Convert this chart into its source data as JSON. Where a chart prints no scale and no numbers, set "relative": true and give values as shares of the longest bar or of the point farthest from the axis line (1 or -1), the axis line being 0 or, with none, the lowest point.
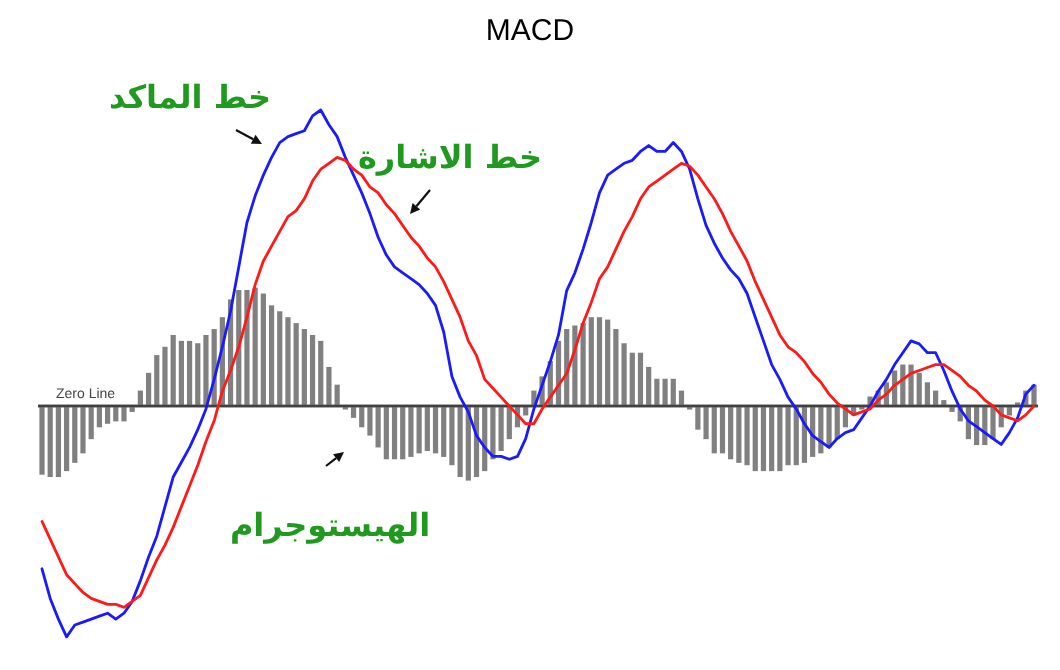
{
  "chart_data": [
    {
      "type": "line",
      "title": "MACD",
      "relative": true,
      "categories": [
        null,
        null,
        null,
        null,
        null,
        null,
        null,
        null,
        null,
        null,
        null,
        null,
        null,
        null,
        null,
        null,
        null,
        null,
        null,
        null,
        null,
        null,
        null,
        null,
        null,
        null,
        null,
        null,
        null,
        null,
        null,
        null,
        null,
        null,
        null,
        null,
        null,
        null,
        null,
        null,
        null,
        null,
        null,
        null,
        null,
        null,
        null,
        null,
        null,
        null,
        null,
        null,
        null,
        null,
        null,
        null,
        null,
        null,
        null,
        null,
        null,
        null,
        null,
        null,
        null,
        null,
        null,
        null,
        null,
        null,
        null,
        null,
        null,
        null,
        null,
        null,
        null,
        null,
        null,
        null,
        null,
        null,
        null,
        null,
        null,
        null,
        null,
        null,
        null,
        null,
        null,
        null,
        null,
        null,
        null,
        null,
        null,
        null,
        null,
        null,
        null,
        null,
        null,
        null,
        null,
        null,
        null,
        null,
        null,
        null,
        null,
        null,
        null,
        null,
        null,
        null,
        null,
        null,
        null,
        null,
        null,
        null
      ],
      "series": [
        {
          "name": "خط الماكد",
          "color": "#1a1aff",
          "values": [
            -0.55,
            -0.65,
            -0.72,
            -0.78,
            -0.74,
            -0.73,
            -0.72,
            -0.71,
            -0.7,
            -0.72,
            -0.7,
            -0.66,
            -0.59,
            -0.51,
            -0.44,
            -0.34,
            -0.24,
            -0.19,
            -0.14,
            -0.08,
            -0.01,
            0.09,
            0.2,
            0.32,
            0.47,
            0.62,
            0.71,
            0.78,
            0.84,
            0.89,
            0.91,
            0.92,
            0.93,
            0.98,
            1,
            0.95,
            0.91,
            0.84,
            0.78,
            0.72,
            0.65,
            0.57,
            0.51,
            0.47,
            0.45,
            0.43,
            0.41,
            0.38,
            0.34,
            0.25,
            0.1,
            0.03,
            -0.02,
            -0.1,
            -0.14,
            -0.17,
            -0.17,
            -0.18,
            -0.17,
            -0.11,
            -0.01,
            0.07,
            0.15,
            0.24,
            0.39,
            0.45,
            0.53,
            0.62,
            0.72,
            0.78,
            0.8,
            0.82,
            0.83,
            0.86,
            0.88,
            0.86,
            0.86,
            0.89,
            0.86,
            0.8,
            0.7,
            0.61,
            0.55,
            0.5,
            0.46,
            0.43,
            0.38,
            0.3,
            0.22,
            0.14,
            0.09,
            0.03,
            -0.01,
            -0.06,
            -0.1,
            -0.12,
            -0.14,
            -0.11,
            -0.09,
            -0.08,
            -0.04,
            0,
            0.05,
            0.09,
            0.14,
            0.18,
            0.22,
            0.21,
            0.18,
            0.18,
            0.12,
            0.05,
            -0.01,
            -0.05,
            -0.07,
            -0.09,
            -0.11,
            -0.13,
            -0.09,
            -0.04,
            0.04,
            0.07
          ]
        },
        {
          "name": "خط الاشارة",
          "color": "#ff1a1a",
          "values": [
            -0.39,
            -0.45,
            -0.51,
            -0.57,
            -0.6,
            -0.63,
            -0.65,
            -0.66,
            -0.67,
            -0.67,
            -0.68,
            -0.66,
            -0.64,
            -0.58,
            -0.52,
            -0.47,
            -0.41,
            -0.34,
            -0.27,
            -0.2,
            -0.12,
            -0.05,
            0.05,
            0.12,
            0.2,
            0.3,
            0.41,
            0.49,
            0.54,
            0.59,
            0.64,
            0.66,
            0.7,
            0.76,
            0.8,
            0.82,
            0.84,
            0.83,
            0.8,
            0.78,
            0.74,
            0.72,
            0.68,
            0.65,
            0.61,
            0.57,
            0.54,
            0.5,
            0.47,
            0.42,
            0.36,
            0.3,
            0.22,
            0.17,
            0.09,
            0.06,
            0.03,
            0,
            -0.03,
            -0.06,
            -0.06,
            -0.01,
            0.03,
            0.07,
            0.11,
            0.19,
            0.28,
            0.35,
            0.43,
            0.47,
            0.53,
            0.59,
            0.64,
            0.7,
            0.74,
            0.76,
            0.78,
            0.8,
            0.82,
            0.81,
            0.78,
            0.74,
            0.7,
            0.65,
            0.59,
            0.54,
            0.49,
            0.42,
            0.36,
            0.3,
            0.24,
            0.2,
            0.18,
            0.15,
            0.11,
            0.08,
            0.04,
            0.01,
            -0.01,
            -0.03,
            -0.02,
            -0.01,
            0.02,
            0.04,
            0.07,
            0.09,
            0.11,
            0.12,
            0.13,
            0.14,
            0.14,
            0.12,
            0.1,
            0.07,
            0.05,
            0.02,
            0,
            -0.03,
            -0.04,
            -0.05,
            -0.03,
            0
          ]
        }
      ]
    },
    {
      "type": "bar",
      "relative": true,
      "annotations": [
        "Zero Line"
      ],
      "categories": [
        null,
        null,
        null,
        null,
        null,
        null,
        null,
        null,
        null,
        null,
        null,
        null,
        null,
        null,
        null,
        null,
        null,
        null,
        null,
        null,
        null,
        null,
        null,
        null,
        null,
        null,
        null,
        null,
        null,
        null,
        null,
        null,
        null,
        null,
        null,
        null,
        null,
        null,
        null,
        null,
        null,
        null,
        null,
        null,
        null,
        null,
        null,
        null,
        null,
        null,
        null,
        null,
        null,
        null,
        null,
        null,
        null,
        null,
        null,
        null,
        null,
        null,
        null,
        null,
        null,
        null,
        null,
        null,
        null,
        null,
        null,
        null,
        null,
        null,
        null,
        null,
        null,
        null,
        null,
        null,
        null,
        null,
        null,
        null,
        null,
        null,
        null,
        null,
        null,
        null,
        null,
        null,
        null,
        null,
        null,
        null,
        null,
        null,
        null,
        null,
        null,
        null,
        null,
        null,
        null,
        null,
        null,
        null,
        null,
        null,
        null,
        null,
        null,
        null,
        null,
        null,
        null,
        null,
        null,
        null,
        null,
        null
      ],
      "series": [
        {
          "name": "الهيستوجرام",
          "color": "#808080",
          "values": [
            -0.58,
            -0.6,
            -0.6,
            -0.55,
            -0.48,
            -0.4,
            -0.28,
            -0.18,
            -0.15,
            -0.13,
            -0.13,
            -0.05,
            0.13,
            0.28,
            0.43,
            0.5,
            0.6,
            0.55,
            0.55,
            0.53,
            0.6,
            0.65,
            0.75,
            0.9,
            0.98,
            0.98,
            1,
            0.95,
            0.85,
            0.8,
            0.75,
            0.7,
            0.65,
            0.6,
            0.55,
            0.33,
            0.18,
            -0.03,
            -0.1,
            -0.18,
            -0.25,
            -0.35,
            -0.45,
            -0.45,
            -0.45,
            -0.43,
            -0.4,
            -0.38,
            -0.4,
            -0.43,
            -0.5,
            -0.6,
            -0.63,
            -0.6,
            -0.55,
            -0.45,
            -0.38,
            -0.28,
            -0.18,
            -0.08,
            0.13,
            0.25,
            0.38,
            0.55,
            0.65,
            0.68,
            0.7,
            0.75,
            0.75,
            0.73,
            0.65,
            0.53,
            0.45,
            0.45,
            0.33,
            0.23,
            0.23,
            0.23,
            0.13,
            -0.03,
            -0.2,
            -0.28,
            -0.4,
            -0.4,
            -0.45,
            -0.48,
            -0.5,
            -0.55,
            -0.55,
            -0.55,
            -0.55,
            -0.5,
            -0.5,
            -0.48,
            -0.43,
            -0.4,
            -0.35,
            -0.28,
            -0.18,
            -0.08,
            -0.03,
            0.08,
            0.13,
            0.2,
            0.3,
            0.35,
            0.35,
            0.28,
            0.2,
            0.13,
            0.05,
            -0.05,
            -0.13,
            -0.28,
            -0.33,
            -0.33,
            -0.28,
            -0.18,
            -0.08,
            0.03,
            0.13,
            0.18
          ]
        }
      ]
    }
  ]
}
